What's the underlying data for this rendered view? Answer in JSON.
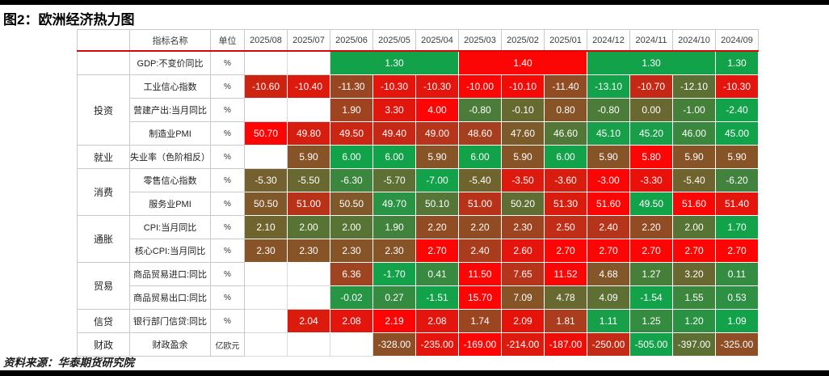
{
  "source": "资料来源：华泰期货研究院",
  "colors": {
    "border_bars": "#000000",
    "header_rule": "#D40A0A",
    "label_grid": "#C9C9C9",
    "cell_text": "#FFFFFF",
    "scale_red_extreme": "#FB0505",
    "scale_mid_brown": "#875428",
    "scale_green_extreme": "#12A34A"
  },
  "chart_data": {
    "type": "heatmap",
    "title": "图2：欧洲经济热力图",
    "corner_label": "",
    "name_header": "指标名称",
    "unit_header": "单位",
    "columns": [
      "2025/08",
      "2025/07",
      "2025/06",
      "2025/05",
      "2025/04",
      "2025/03",
      "2025/02",
      "2025/01",
      "2024/12",
      "2024/11",
      "2024/10",
      "2024/09"
    ],
    "rows": [
      {
        "group": {
          "label": "",
          "span": 1
        },
        "name": "GDP:不变价同比",
        "unit": "%",
        "cells": [
          {
            "v": "",
            "c": null
          },
          {
            "v": "",
            "c": null
          },
          {
            "v": "1.30",
            "c": "#12A34A",
            "span": 3
          },
          {
            "v": "1.40",
            "c": "#FB0505",
            "span": 3
          },
          {
            "v": "1.30",
            "c": "#12A34A",
            "span": 3
          },
          {
            "v": "1.30",
            "c": "#12A34A"
          }
        ]
      },
      {
        "group": {
          "label": "投资",
          "span": 3
        },
        "name": "工业信心指数",
        "unit": "%",
        "cells": [
          {
            "v": "-10.60",
            "c": "#CF2312"
          },
          {
            "v": "-10.40",
            "c": "#DD1A0E"
          },
          {
            "v": "-11.30",
            "c": "#994722"
          },
          {
            "v": "-10.30",
            "c": "#E4150C"
          },
          {
            "v": "-10.30",
            "c": "#E4150C"
          },
          {
            "v": "-10.00",
            "c": "#FB0505"
          },
          {
            "v": "-10.10",
            "c": "#F40A07"
          },
          {
            "v": "-11.40",
            "c": "#924C24"
          },
          {
            "v": "-13.10",
            "c": "#12A34A"
          },
          {
            "v": "-10.70",
            "c": "#C52915"
          },
          {
            "v": "-12.10",
            "c": "#5D7034"
          },
          {
            "v": "-10.30",
            "c": "#E4150C"
          }
        ]
      },
      {
        "group": null,
        "name": "营建产出:当月同比",
        "unit": "%",
        "cells": [
          {
            "v": "",
            "c": null
          },
          {
            "v": "",
            "c": null
          },
          {
            "v": "1.90",
            "c": "#A04320"
          },
          {
            "v": "3.30",
            "c": "#E1160D"
          },
          {
            "v": "4.00",
            "c": "#FB0505"
          },
          {
            "v": "-0.80",
            "c": "#4C7C39"
          },
          {
            "v": "-0.10",
            "c": "#666A31"
          },
          {
            "v": "0.80",
            "c": "#875428"
          },
          {
            "v": "-0.80",
            "c": "#4C7C39"
          },
          {
            "v": "0.00",
            "c": "#696830"
          },
          {
            "v": "-1.00",
            "c": "#45803B"
          },
          {
            "v": "-2.40",
            "c": "#12A34A"
          }
        ]
      },
      {
        "group": null,
        "name": "制造业PMI",
        "unit": "%",
        "cells": [
          {
            "v": "50.70",
            "c": "#FB0505"
          },
          {
            "v": "49.80",
            "c": "#D61E10"
          },
          {
            "v": "49.50",
            "c": "#CA2613"
          },
          {
            "v": "49.40",
            "c": "#C52915"
          },
          {
            "v": "49.00",
            "c": "#B5341A"
          },
          {
            "v": "48.60",
            "c": "#A53F1F"
          },
          {
            "v": "47.60",
            "c": "#7D5A2A"
          },
          {
            "v": "46.60",
            "c": "#537737"
          },
          {
            "v": "45.10",
            "c": "#17A049"
          },
          {
            "v": "45.20",
            "c": "#1A9D48"
          },
          {
            "v": "46.00",
            "c": "#3A883E"
          },
          {
            "v": "45.00",
            "c": "#12A34A"
          }
        ]
      },
      {
        "group": {
          "label": "就业",
          "span": 1
        },
        "name": "失业率（色阶相反）",
        "unit": "%",
        "cells": [
          {
            "v": "",
            "c": null
          },
          {
            "v": "5.90",
            "c": "#875428"
          },
          {
            "v": "6.00",
            "c": "#12A34A"
          },
          {
            "v": "6.00",
            "c": "#12A34A"
          },
          {
            "v": "5.90",
            "c": "#875428"
          },
          {
            "v": "6.00",
            "c": "#12A34A"
          },
          {
            "v": "5.90",
            "c": "#875428"
          },
          {
            "v": "6.00",
            "c": "#12A34A"
          },
          {
            "v": "5.90",
            "c": "#875428"
          },
          {
            "v": "5.80",
            "c": "#FB0505"
          },
          {
            "v": "5.90",
            "c": "#875428"
          },
          {
            "v": "5.90",
            "c": "#875428"
          }
        ]
      },
      {
        "group": {
          "label": "消费",
          "span": 2
        },
        "name": "零售信心指数",
        "unit": "%",
        "cells": [
          {
            "v": "-5.30",
            "c": "#756030"
          },
          {
            "v": "-5.50",
            "c": "#696830"
          },
          {
            "v": "-6.30",
            "c": "#3B873E"
          },
          {
            "v": "-5.70",
            "c": "#5E7034"
          },
          {
            "v": "-7.00",
            "c": "#12A34A"
          },
          {
            "v": "-5.40",
            "c": "#6F642E"
          },
          {
            "v": "-3.50",
            "c": "#DE190E"
          },
          {
            "v": "-3.60",
            "c": "#D81D0F"
          },
          {
            "v": "-3.00",
            "c": "#FB0505"
          },
          {
            "v": "-3.30",
            "c": "#EA110A"
          },
          {
            "v": "-5.40",
            "c": "#6F642E"
          },
          {
            "v": "-6.20",
            "c": "#41833C"
          }
        ]
      },
      {
        "group": null,
        "name": "服务业PMI",
        "unit": "%",
        "cells": [
          {
            "v": "50.50",
            "c": "#815829"
          },
          {
            "v": "51.00",
            "c": "#B83219"
          },
          {
            "v": "50.50",
            "c": "#815829"
          },
          {
            "v": "49.70",
            "c": "#289444"
          },
          {
            "v": "50.10",
            "c": "#557636"
          },
          {
            "v": "51.00",
            "c": "#B83219"
          },
          {
            "v": "50.20",
            "c": "#606E33"
          },
          {
            "v": "51.30",
            "c": "#DA1C0F"
          },
          {
            "v": "51.60",
            "c": "#FB0505"
          },
          {
            "v": "49.50",
            "c": "#12A34A"
          },
          {
            "v": "51.60",
            "c": "#FB0505"
          },
          {
            "v": "51.40",
            "c": "#E4150C"
          }
        ]
      },
      {
        "group": {
          "label": "通胀",
          "span": 2
        },
        "name": "CPI:当月同比",
        "unit": "%",
        "cells": [
          {
            "v": "2.10",
            "c": "#6F642E"
          },
          {
            "v": "2.00",
            "c": "#587435"
          },
          {
            "v": "2.00",
            "c": "#587435"
          },
          {
            "v": "1.90",
            "c": "#41833C"
          },
          {
            "v": "2.20",
            "c": "#924C24"
          },
          {
            "v": "2.20",
            "c": "#924C24"
          },
          {
            "v": "2.30",
            "c": "#9E4421"
          },
          {
            "v": "2.50",
            "c": "#C12D16"
          },
          {
            "v": "2.40",
            "c": "#B5341A"
          },
          {
            "v": "2.20",
            "c": "#924C24"
          },
          {
            "v": "2.00",
            "c": "#587435"
          },
          {
            "v": "1.70",
            "c": "#12A34A"
          }
        ]
      },
      {
        "group": null,
        "name": "核心CPI:当月同比",
        "unit": "%",
        "cells": [
          {
            "v": "2.30",
            "c": "#875428"
          },
          {
            "v": "2.30",
            "c": "#875428"
          },
          {
            "v": "2.30",
            "c": "#875428"
          },
          {
            "v": "2.30",
            "c": "#875428"
          },
          {
            "v": "2.70",
            "c": "#FB0505"
          },
          {
            "v": "2.40",
            "c": "#A93C1D"
          },
          {
            "v": "2.60",
            "c": "#E4150C"
          },
          {
            "v": "2.70",
            "c": "#FB0505"
          },
          {
            "v": "2.70",
            "c": "#FB0505"
          },
          {
            "v": "2.70",
            "c": "#FB0505"
          },
          {
            "v": "2.70",
            "c": "#FB0505"
          },
          {
            "v": "2.70",
            "c": "#FB0505"
          }
        ]
      },
      {
        "group": {
          "label": "贸易",
          "span": 2
        },
        "name": "商品贸易进口:同比",
        "unit": "%",
        "cells": [
          {
            "v": "",
            "c": null
          },
          {
            "v": "",
            "c": null
          },
          {
            "v": "6.36",
            "c": "#A04320"
          },
          {
            "v": "-1.70",
            "c": "#12A34A"
          },
          {
            "v": "0.41",
            "c": "#378A3F"
          },
          {
            "v": "11.50",
            "c": "#FB0505"
          },
          {
            "v": "7.65",
            "c": "#B73319"
          },
          {
            "v": "11.52",
            "c": "#FB0505"
          },
          {
            "v": "4.68",
            "c": "#835729"
          },
          {
            "v": "1.27",
            "c": "#467F3A"
          },
          {
            "v": "3.20",
            "c": "#686830"
          },
          {
            "v": "0.11",
            "c": "#328D41"
          }
        ]
      },
      {
        "group": null,
        "name": "商品贸易出口:同比",
        "unit": "%",
        "cells": [
          {
            "v": "",
            "c": null
          },
          {
            "v": "",
            "c": null
          },
          {
            "v": "-0.02",
            "c": "#269544"
          },
          {
            "v": "0.27",
            "c": "#358B40"
          },
          {
            "v": "-1.51",
            "c": "#12A34A"
          },
          {
            "v": "15.70",
            "c": "#FB0505"
          },
          {
            "v": "7.09",
            "c": "#875428"
          },
          {
            "v": "4.78",
            "c": "#686931"
          },
          {
            "v": "4.09",
            "c": "#5E6F34"
          },
          {
            "v": "-1.54",
            "c": "#12A34A"
          },
          {
            "v": "1.55",
            "c": "#3C873E"
          },
          {
            "v": "0.53",
            "c": "#2E9042"
          }
        ]
      },
      {
        "group": {
          "label": "信贷",
          "span": 1
        },
        "name": "银行部门信贷:同比",
        "unit": "%",
        "cells": [
          {
            "v": "",
            "c": null
          },
          {
            "v": "2.04",
            "c": "#DB1B0E"
          },
          {
            "v": "2.08",
            "c": "#E4150C"
          },
          {
            "v": "2.19",
            "c": "#FB0505"
          },
          {
            "v": "2.08",
            "c": "#E4150C"
          },
          {
            "v": "1.74",
            "c": "#9C4621"
          },
          {
            "v": "2.09",
            "c": "#E6130B"
          },
          {
            "v": "1.81",
            "c": "#AB3C1D"
          },
          {
            "v": "1.11",
            "c": "#17A049"
          },
          {
            "v": "1.25",
            "c": "#348C40"
          },
          {
            "v": "1.20",
            "c": "#299343"
          },
          {
            "v": "1.09",
            "c": "#12A34A"
          }
        ]
      },
      {
        "group": {
          "label": "财政",
          "span": 1
        },
        "name": "财政盈余",
        "unit": "亿欧元",
        "cells": [
          {
            "v": "",
            "c": null
          },
          {
            "v": "",
            "c": null
          },
          {
            "v": "",
            "c": null
          },
          {
            "v": "-328.00",
            "c": "#8D5026"
          },
          {
            "v": "-235.00",
            "c": "#E4150C"
          },
          {
            "v": "-169.00",
            "c": "#FB0505"
          },
          {
            "v": "-214.00",
            "c": "#DC1A0E"
          },
          {
            "v": "-187.00",
            "c": "#EE0E09"
          },
          {
            "v": "-250.00",
            "c": "#C32B16"
          },
          {
            "v": "-505.00",
            "c": "#12A34A"
          },
          {
            "v": "-397.00",
            "c": "#5D7034"
          },
          {
            "v": "-325.00",
            "c": "#8F4E25"
          }
        ]
      }
    ]
  }
}
